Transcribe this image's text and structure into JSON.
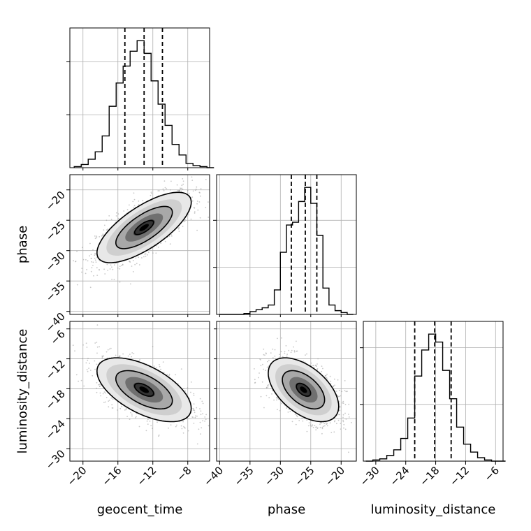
{
  "chart_data": {
    "type": "corner",
    "parameters": [
      "geocent_time",
      "phase",
      "luminosity_distance"
    ],
    "axis_labels": {
      "x": [
        "geocent_time",
        "phase",
        "luminosity_distance"
      ],
      "y": [
        "phase",
        "luminosity_distance"
      ]
    },
    "grid": true,
    "ranges": {
      "geocent_time": [
        -21.5,
        -5.5
      ],
      "phase": [
        -40.5,
        -17.5
      ],
      "luminosity_distance": [
        -32.5,
        -4.5
      ]
    },
    "ticks": {
      "geocent_time": [
        -20,
        -16,
        -12,
        -8
      ],
      "phase": [
        -40,
        -35,
        -30,
        -25,
        -20
      ],
      "luminosity_distance": [
        -30,
        -24,
        -18,
        -12,
        -6
      ]
    },
    "tick_labels": {
      "geocent_time": [
        "−20",
        "−16",
        "−12",
        "−8"
      ],
      "phase": [
        "−40",
        "−35",
        "−30",
        "−25",
        "−20"
      ],
      "luminosity_distance": [
        "−30",
        "−24",
        "−18",
        "−12",
        "−6"
      ],
      "phase_y": [
        "−20",
        "−25",
        "−30",
        "−35",
        "−40"
      ],
      "luminosity_distance_y": [
        "−6",
        "−12",
        "−18",
        "−24",
        "−30"
      ]
    },
    "diagonal": [
      {
        "parameter": "geocent_time",
        "bin_edges": [
          -21.0,
          -20.2,
          -19.4,
          -18.6,
          -17.8,
          -17.0,
          -16.2,
          -15.4,
          -14.6,
          -13.8,
          -13.0,
          -12.2,
          -11.4,
          -10.6,
          -9.8,
          -9.0,
          -8.2,
          -7.4,
          -6.6,
          -5.8,
          -5.0
        ],
        "counts": [
          1,
          3,
          8,
          15,
          30,
          58,
          80,
          96,
          110,
          120,
          108,
          82,
          60,
          40,
          22,
          12,
          4,
          2,
          1,
          0
        ],
        "quantiles": [
          -15.2,
          -13.0,
          -10.9
        ]
      },
      {
        "parameter": "phase",
        "bin_edges": [
          -40.0,
          -39.0,
          -38.0,
          -37.0,
          -36.0,
          -35.0,
          -34.0,
          -33.0,
          -32.0,
          -31.0,
          -30.0,
          -29.0,
          -28.0,
          -27.0,
          -26.0,
          -25.0,
          -24.0,
          -23.0,
          -22.0,
          -21.0,
          -20.0,
          -19.0,
          -18.0
        ],
        "counts": [
          0,
          0,
          0,
          0,
          1,
          3,
          5,
          7,
          10,
          26,
          66,
          95,
          98,
          120,
          135,
          118,
          84,
          28,
          10,
          4,
          2,
          0
        ],
        "quantiles": [
          -28.2,
          -25.9,
          -24.0
        ]
      },
      {
        "parameter": "luminosity_distance",
        "bin_edges": [
          -32.0,
          -30.6,
          -29.2,
          -27.8,
          -26.4,
          -25.0,
          -23.6,
          -22.2,
          -20.8,
          -19.4,
          -18.0,
          -16.6,
          -15.2,
          -13.8,
          -12.4,
          -11.0,
          -9.6,
          -8.2,
          -6.8,
          -5.4,
          -4.0
        ],
        "counts": [
          0,
          1,
          2,
          5,
          10,
          20,
          38,
          75,
          98,
          112,
          105,
          80,
          55,
          30,
          15,
          8,
          3,
          1,
          0,
          0
        ],
        "quantiles": [
          -22.2,
          -18.2,
          -14.9
        ]
      }
    ],
    "pairs": [
      {
        "x": "geocent_time",
        "y": "phase",
        "mean": [
          -13.0,
          -26.2
        ],
        "std": [
          2.7,
          2.9
        ],
        "correlation": 0.72
      },
      {
        "x": "geocent_time",
        "y": "luminosity_distance",
        "mean": [
          -13.0,
          -18.2
        ],
        "std": [
          2.7,
          3.2
        ],
        "correlation": -0.58
      },
      {
        "x": "phase",
        "y": "luminosity_distance",
        "mean": [
          -26.2,
          -18.2
        ],
        "std": [
          2.9,
          3.2
        ],
        "correlation": -0.52
      }
    ],
    "contour_levels": [
      0.4,
      1.2,
      2.0
    ]
  }
}
